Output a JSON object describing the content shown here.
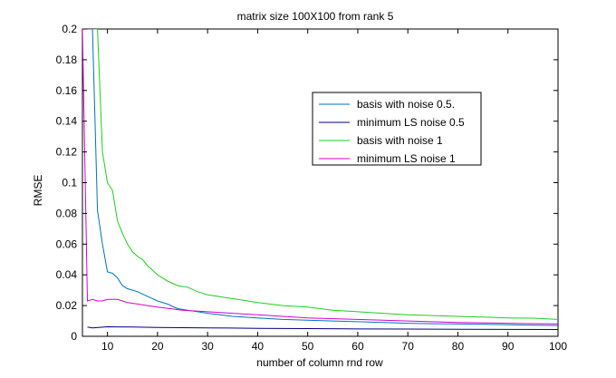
{
  "chart_data": {
    "type": "line",
    "title": "matrix size 100X100 from rank 5",
    "xlabel": "number of column rnd row",
    "ylabel": "RMSE",
    "xlim": [
      5,
      100
    ],
    "ylim": [
      0,
      0.2
    ],
    "xticks": [
      10,
      20,
      30,
      40,
      50,
      60,
      70,
      80,
      90,
      100
    ],
    "xtick_labels": [
      "10",
      "20",
      "30",
      "40",
      "50",
      "60",
      "70",
      "80",
      "90",
      "100"
    ],
    "yticks": [
      0,
      0.02,
      0.04,
      0.06,
      0.08,
      0.1,
      0.12,
      0.14,
      0.16,
      0.18,
      0.2
    ],
    "ytick_labels": [
      "0",
      "0.02",
      "0.04",
      "0.06",
      "0.08",
      "0.1",
      "0.12",
      "0.14",
      "0.16",
      "0.18",
      "0.2"
    ],
    "grid": false,
    "legend_position": "upper-right",
    "series": [
      {
        "name": "basis with noise 0.5.",
        "color": "#0072bd",
        "x": [
          6,
          7,
          8,
          9,
          10,
          11,
          12,
          13,
          14,
          15,
          16,
          18,
          20,
          22,
          24,
          26,
          28,
          30,
          35,
          40,
          45,
          50,
          55,
          60,
          65,
          70,
          75,
          80,
          85,
          90,
          95,
          100
        ],
        "y": [
          0.2,
          0.2,
          0.082,
          0.06,
          0.042,
          0.041,
          0.038,
          0.033,
          0.031,
          0.03,
          0.029,
          0.026,
          0.023,
          0.021,
          0.018,
          0.017,
          0.016,
          0.015,
          0.013,
          0.012,
          0.011,
          0.0105,
          0.01,
          0.0095,
          0.009,
          0.0085,
          0.0082,
          0.008,
          0.0078,
          0.0075,
          0.0072,
          0.007
        ]
      },
      {
        "name": "minimum LS noise 0.5",
        "color": "#00007f",
        "x": [
          6,
          7,
          10,
          15,
          20,
          30,
          40,
          50,
          60,
          70,
          80,
          90,
          100
        ],
        "y": [
          0.006,
          0.0055,
          0.0062,
          0.006,
          0.0058,
          0.0055,
          0.0052,
          0.005,
          0.0048,
          0.0047,
          0.0046,
          0.0045,
          0.0044
        ]
      },
      {
        "name": "basis with noise 1",
        "color": "#1fcd1f",
        "x": [
          7,
          8,
          9,
          10,
          11,
          12,
          13,
          14,
          15,
          16,
          17,
          18,
          19,
          20,
          22,
          24,
          26,
          28,
          30,
          32,
          34,
          36,
          38,
          40,
          45,
          50,
          55,
          60,
          65,
          70,
          75,
          80,
          85,
          90,
          95,
          100
        ],
        "y": [
          0.2,
          0.2,
          0.12,
          0.1,
          0.095,
          0.075,
          0.067,
          0.06,
          0.055,
          0.052,
          0.05,
          0.046,
          0.043,
          0.04,
          0.036,
          0.033,
          0.032,
          0.029,
          0.027,
          0.026,
          0.025,
          0.024,
          0.023,
          0.022,
          0.02,
          0.019,
          0.017,
          0.016,
          0.015,
          0.014,
          0.0135,
          0.013,
          0.0125,
          0.012,
          0.0118,
          0.011
        ]
      },
      {
        "name": "minimum LS noise 1",
        "color": "#d400d4",
        "x": [
          5,
          6,
          7,
          8,
          9,
          10,
          12,
          14,
          16,
          18,
          20,
          25,
          30,
          35,
          40,
          45,
          50,
          60,
          70,
          80,
          90,
          100
        ],
        "y": [
          0.2,
          0.023,
          0.024,
          0.023,
          0.023,
          0.024,
          0.024,
          0.022,
          0.021,
          0.02,
          0.019,
          0.017,
          0.016,
          0.015,
          0.014,
          0.013,
          0.012,
          0.011,
          0.01,
          0.009,
          0.0085,
          0.008
        ]
      }
    ]
  }
}
